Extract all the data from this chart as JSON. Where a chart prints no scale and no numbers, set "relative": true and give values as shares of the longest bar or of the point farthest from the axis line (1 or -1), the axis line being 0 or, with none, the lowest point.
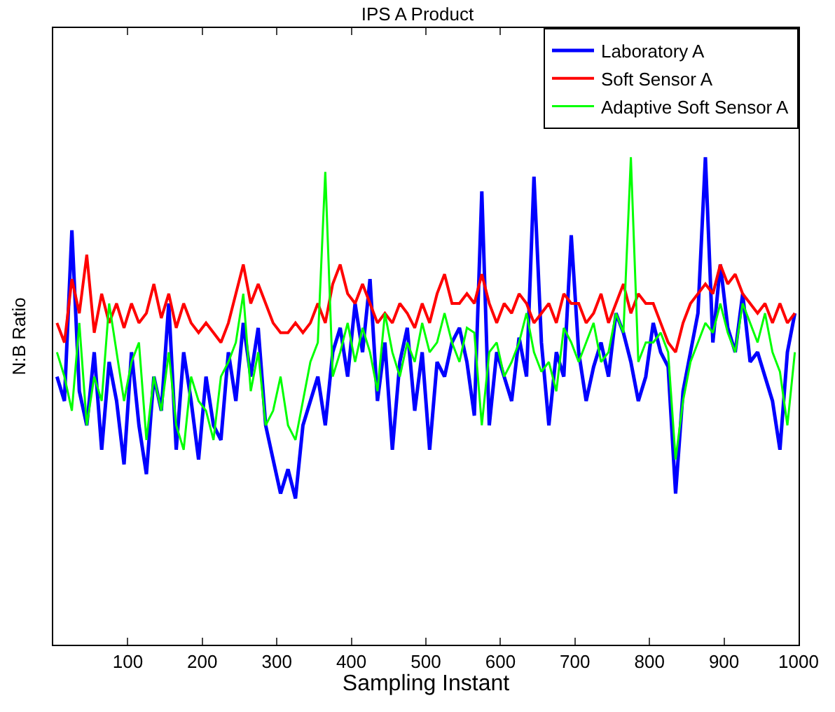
{
  "chart_data": {
    "type": "line",
    "title": "IPS A Product",
    "xlabel": "Sampling Instant",
    "ylabel": "N:B Ratio",
    "relative": true,
    "x": [
      5,
      15,
      25,
      35,
      45,
      55,
      65,
      75,
      85,
      95,
      105,
      115,
      125,
      135,
      145,
      155,
      165,
      175,
      185,
      195,
      205,
      215,
      225,
      235,
      245,
      255,
      265,
      275,
      285,
      295,
      305,
      315,
      325,
      335,
      345,
      355,
      365,
      375,
      385,
      395,
      405,
      415,
      425,
      435,
      445,
      455,
      465,
      475,
      485,
      495,
      505,
      515,
      525,
      535,
      545,
      555,
      565,
      575,
      585,
      595,
      605,
      615,
      625,
      635,
      645,
      655,
      665,
      675,
      685,
      695,
      705,
      715,
      725,
      735,
      745,
      755,
      765,
      775,
      785,
      795,
      805,
      815,
      825,
      835,
      845,
      855,
      865,
      875,
      885,
      895,
      905,
      915,
      925,
      935,
      945,
      955,
      965,
      975,
      985,
      995
    ],
    "xlim": [
      0,
      1000
    ],
    "xticks": [
      100,
      200,
      300,
      400,
      500,
      600,
      700,
      800,
      900,
      1000
    ],
    "series": [
      {
        "name": "Laboratory A",
        "color": "#0000ff",
        "values": [
          0.55,
          0.5,
          0.85,
          0.52,
          0.45,
          0.6,
          0.4,
          0.58,
          0.5,
          0.37,
          0.6,
          0.45,
          0.35,
          0.55,
          0.48,
          0.7,
          0.4,
          0.6,
          0.5,
          0.38,
          0.55,
          0.45,
          0.42,
          0.6,
          0.5,
          0.66,
          0.55,
          0.65,
          0.45,
          0.38,
          0.31,
          0.36,
          0.3,
          0.45,
          0.5,
          0.55,
          0.45,
          0.6,
          0.65,
          0.55,
          0.7,
          0.6,
          0.75,
          0.5,
          0.62,
          0.4,
          0.58,
          0.65,
          0.48,
          0.6,
          0.4,
          0.58,
          0.55,
          0.62,
          0.65,
          0.58,
          0.47,
          0.93,
          0.45,
          0.6,
          0.55,
          0.5,
          0.63,
          0.55,
          0.96,
          0.62,
          0.45,
          0.6,
          0.55,
          0.84,
          0.6,
          0.5,
          0.57,
          0.62,
          0.55,
          0.68,
          0.64,
          0.58,
          0.5,
          0.55,
          0.66,
          0.6,
          0.57,
          0.31,
          0.52,
          0.6,
          0.68,
          1,
          0.62,
          0.78,
          0.65,
          0.6,
          0.72,
          0.58,
          0.6,
          0.55,
          0.5,
          0.4,
          0.6,
          0.68
        ]
      },
      {
        "name": "Soft Sensor A",
        "color": "#ff0000",
        "values": [
          0.66,
          0.62,
          0.75,
          0.68,
          0.8,
          0.64,
          0.72,
          0.66,
          0.7,
          0.65,
          0.7,
          0.66,
          0.68,
          0.74,
          0.67,
          0.72,
          0.65,
          0.7,
          0.66,
          0.64,
          0.66,
          0.64,
          0.62,
          0.66,
          0.72,
          0.78,
          0.7,
          0.74,
          0.7,
          0.66,
          0.64,
          0.64,
          0.66,
          0.64,
          0.66,
          0.7,
          0.66,
          0.74,
          0.78,
          0.72,
          0.7,
          0.74,
          0.7,
          0.66,
          0.68,
          0.66,
          0.7,
          0.68,
          0.65,
          0.7,
          0.66,
          0.72,
          0.76,
          0.7,
          0.7,
          0.72,
          0.7,
          0.76,
          0.7,
          0.66,
          0.7,
          0.68,
          0.72,
          0.7,
          0.66,
          0.68,
          0.7,
          0.66,
          0.72,
          0.7,
          0.7,
          0.66,
          0.68,
          0.72,
          0.66,
          0.7,
          0.74,
          0.68,
          0.72,
          0.7,
          0.7,
          0.66,
          0.62,
          0.6,
          0.66,
          0.7,
          0.72,
          0.74,
          0.72,
          0.78,
          0.74,
          0.76,
          0.72,
          0.7,
          0.68,
          0.7,
          0.66,
          0.7,
          0.66,
          0.68
        ]
      },
      {
        "name": "Adaptive Soft Sensor A",
        "color": "#00ff00",
        "values": [
          0.6,
          0.55,
          0.48,
          0.66,
          0.45,
          0.55,
          0.5,
          0.7,
          0.6,
          0.5,
          0.58,
          0.62,
          0.42,
          0.55,
          0.48,
          0.6,
          0.45,
          0.4,
          0.55,
          0.5,
          0.48,
          0.42,
          0.55,
          0.58,
          0.62,
          0.72,
          0.52,
          0.6,
          0.45,
          0.48,
          0.55,
          0.45,
          0.42,
          0.5,
          0.58,
          0.62,
          0.97,
          0.55,
          0.6,
          0.66,
          0.58,
          0.65,
          0.6,
          0.52,
          0.68,
          0.6,
          0.55,
          0.62,
          0.58,
          0.66,
          0.6,
          0.62,
          0.68,
          0.62,
          0.58,
          0.65,
          0.64,
          0.45,
          0.6,
          0.62,
          0.55,
          0.58,
          0.62,
          0.68,
          0.6,
          0.56,
          0.58,
          0.52,
          0.65,
          0.62,
          0.58,
          0.62,
          0.66,
          0.58,
          0.6,
          0.68,
          0.64,
          1,
          0.58,
          0.62,
          0.62,
          0.64,
          0.6,
          0.38,
          0.5,
          0.58,
          0.62,
          0.66,
          0.64,
          0.7,
          0.64,
          0.6,
          0.7,
          0.66,
          0.62,
          0.68,
          0.6,
          0.56,
          0.45,
          0.6
        ]
      }
    ],
    "legend": "top right",
    "marker": "none",
    "line_style": "solid"
  }
}
